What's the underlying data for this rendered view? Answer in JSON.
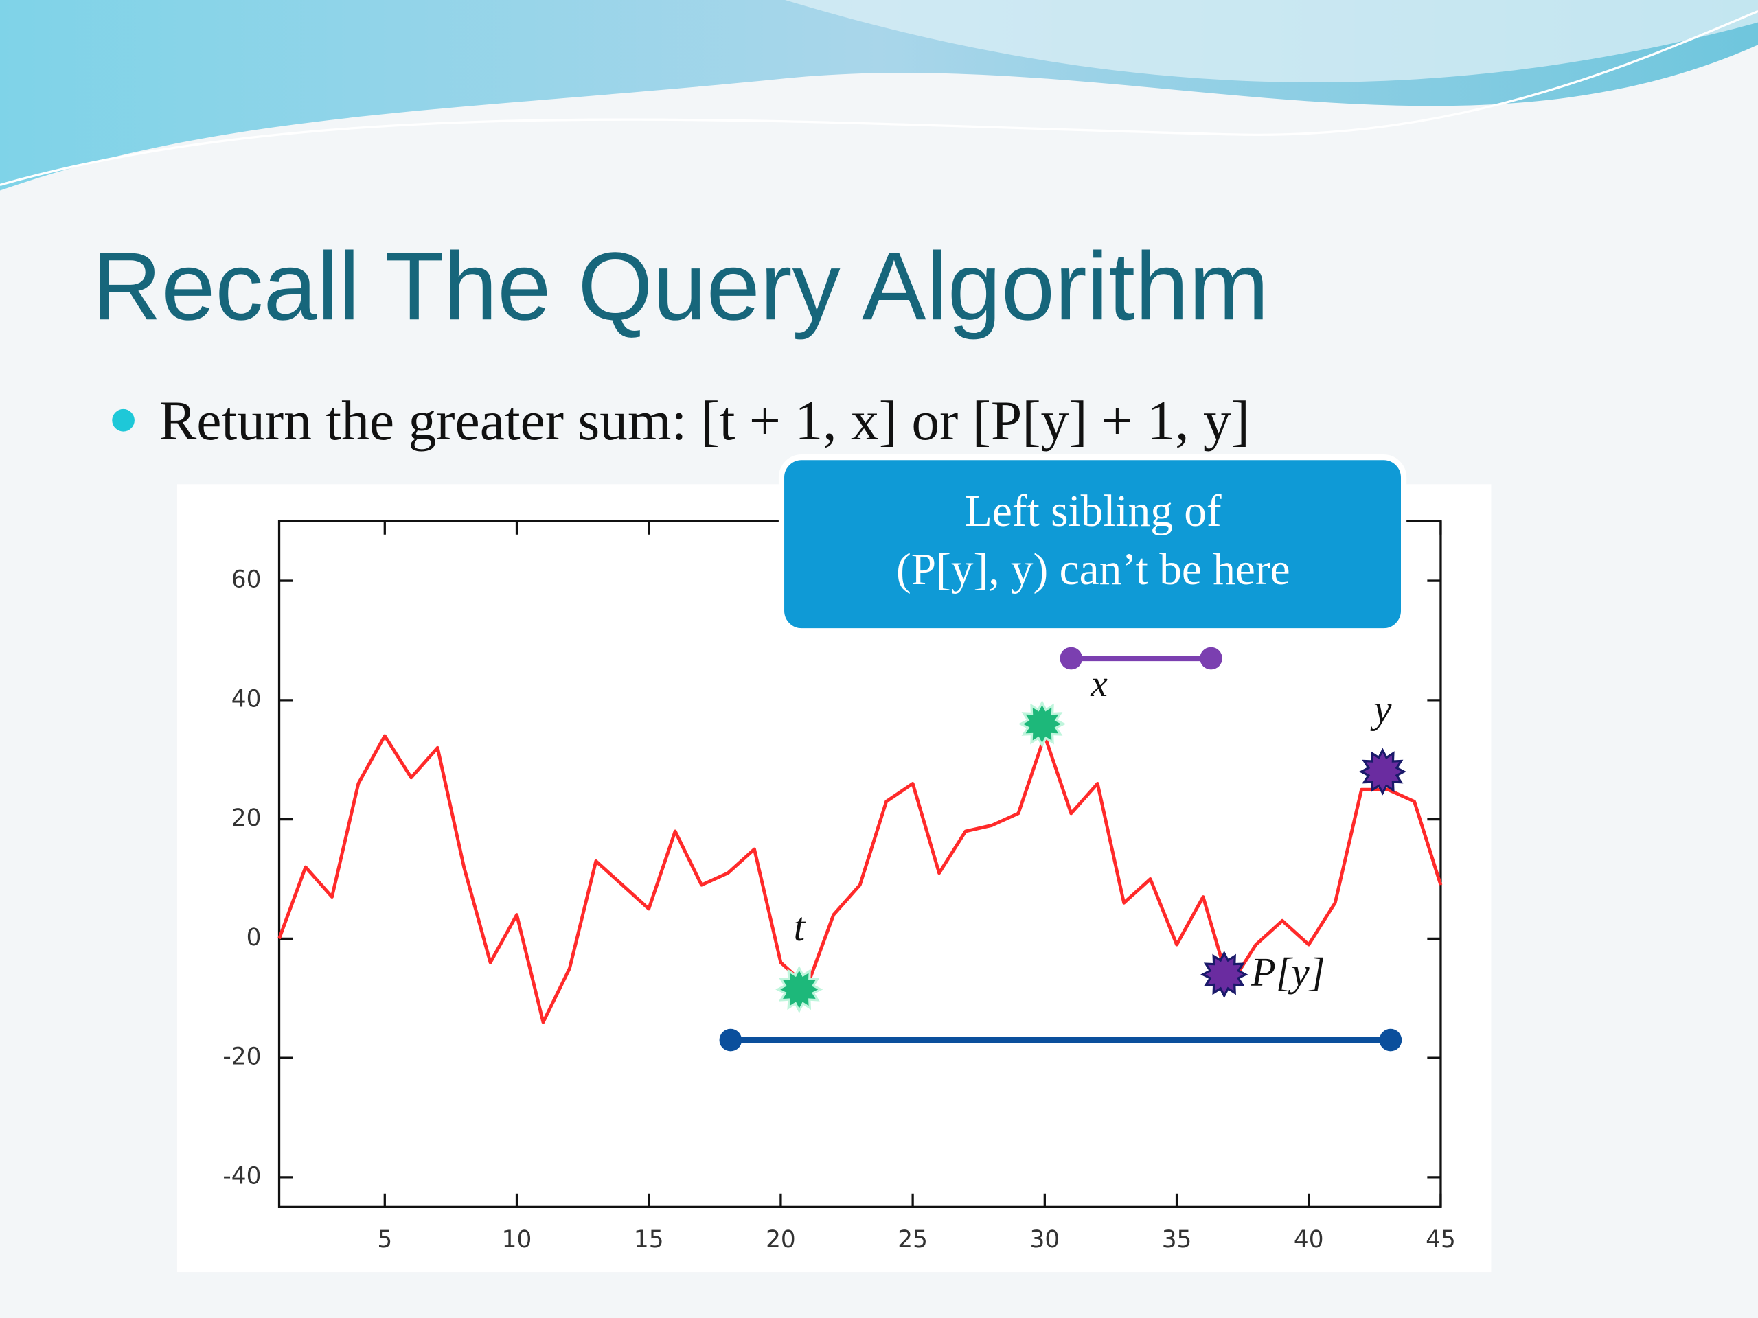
{
  "slide": {
    "title": "Recall The Query Algorithm",
    "bullet": "Return the greater sum: [t + 1, x] or [P[y] + 1, y]",
    "callout": [
      "Left sibling of",
      "(P[y], y) can’t be here"
    ]
  },
  "chart_data": {
    "type": "line",
    "color": "#ff2a2a",
    "x": [
      1,
      2,
      3,
      4,
      5,
      6,
      7,
      8,
      9,
      10,
      11,
      12,
      13,
      14,
      15,
      16,
      17,
      18,
      19,
      20,
      21,
      22,
      23,
      24,
      25,
      26,
      27,
      28,
      29,
      30,
      31,
      32,
      33,
      34,
      35,
      36,
      37,
      38,
      39,
      40,
      41,
      42,
      43,
      44,
      45
    ],
    "values": [
      0,
      12,
      7,
      26,
      34,
      27,
      32,
      12,
      -4,
      4,
      -14,
      -5,
      13,
      9,
      5,
      18,
      9,
      11,
      15,
      -4,
      -8,
      4,
      9,
      23,
      26,
      11,
      18,
      19,
      21,
      34,
      21,
      26,
      6,
      10,
      -1,
      7,
      -8,
      -1,
      3,
      -1,
      6,
      25,
      25,
      23,
      9
    ],
    "xlim": [
      1,
      45
    ],
    "ylim": [
      -45,
      70
    ],
    "xticks": [
      5,
      10,
      15,
      20,
      25,
      30,
      35,
      40,
      45
    ],
    "yticks": [
      -40,
      -20,
      0,
      20,
      40,
      60
    ],
    "points": [
      {
        "label": "t",
        "x": 20.7,
        "y": -8.5,
        "color": "#1db87a"
      },
      {
        "x": 29.9,
        "y": 36,
        "color": "#1db87a"
      },
      {
        "label": "P[y]",
        "x": 36.8,
        "y": -6,
        "color": "#6a2ca0"
      },
      {
        "label": "y",
        "x": 42.8,
        "y": 28,
        "color": "#6a2ca0"
      }
    ],
    "intervals": [
      {
        "label": "x",
        "x": [
          31,
          36.3
        ],
        "y": 47,
        "color": "#7b3fb0"
      },
      {
        "x": [
          18.1,
          43.1
        ],
        "y": -17,
        "color": "#0b4f9c"
      }
    ]
  }
}
